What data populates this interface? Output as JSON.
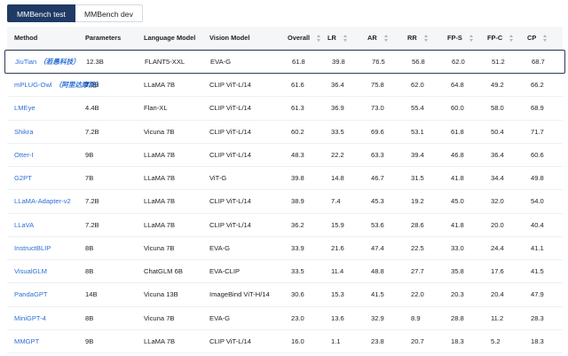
{
  "tabs": [
    {
      "label": "MMBench test",
      "active": true
    },
    {
      "label": "MMBench dev",
      "active": false
    }
  ],
  "columns": [
    "Method",
    "Parameters",
    "Language Model",
    "Vision Model",
    "Overall",
    "LR",
    "AR",
    "RR",
    "FP-S",
    "FP-C",
    "CP"
  ],
  "rows": [
    {
      "method": "JiuTian",
      "tag": "（若愚科技）",
      "params": "12.3B",
      "lm": "FLANT5-XXL",
      "vm": "EVA-G",
      "overall": "61.8",
      "lr": "39.8",
      "ar": "76.5",
      "rr": "56.8",
      "fps": "62.0",
      "fpc": "51.2",
      "cp": "68.7"
    },
    {
      "method": "mPLUG-Owl",
      "tag": "（阿里达摩院）",
      "params": "7.2B",
      "lm": "LLaMA 7B",
      "vm": "CLIP ViT-L/14",
      "overall": "61.6",
      "lr": "36.4",
      "ar": "75.8",
      "rr": "62.0",
      "fps": "64.8",
      "fpc": "49.2",
      "cp": "66.2"
    },
    {
      "method": "LMEye",
      "tag": "",
      "params": "4.4B",
      "lm": "Flan-XL",
      "vm": "CLIP ViT-L/14",
      "overall": "61.3",
      "lr": "36.9",
      "ar": "73.0",
      "rr": "55.4",
      "fps": "60.0",
      "fpc": "58.0",
      "cp": "68.9"
    },
    {
      "method": "Shikra",
      "tag": "",
      "params": "7.2B",
      "lm": "Vicuna 7B",
      "vm": "CLIP ViT-L/14",
      "overall": "60.2",
      "lr": "33.5",
      "ar": "69.6",
      "rr": "53.1",
      "fps": "61.8",
      "fpc": "50.4",
      "cp": "71.7"
    },
    {
      "method": "Otter-I",
      "tag": "",
      "params": "9B",
      "lm": "LLaMA 7B",
      "vm": "CLIP ViT-L/14",
      "overall": "48.3",
      "lr": "22.2",
      "ar": "63.3",
      "rr": "39.4",
      "fps": "46.8",
      "fpc": "36.4",
      "cp": "60.6"
    },
    {
      "method": "G2PT",
      "tag": "",
      "params": "7B",
      "lm": "LLaMA 7B",
      "vm": "ViT-G",
      "overall": "39.8",
      "lr": "14.8",
      "ar": "46.7",
      "rr": "31.5",
      "fps": "41.8",
      "fpc": "34.4",
      "cp": "49.8"
    },
    {
      "method": "LLaMA-Adapter-v2",
      "tag": "",
      "params": "7.2B",
      "lm": "LLaMA 7B",
      "vm": "CLIP ViT-L/14",
      "overall": "38.9",
      "lr": "7.4",
      "ar": "45.3",
      "rr": "19.2",
      "fps": "45.0",
      "fpc": "32.0",
      "cp": "54.0"
    },
    {
      "method": "LLaVA",
      "tag": "",
      "params": "7.2B",
      "lm": "LLaMA 7B",
      "vm": "CLIP ViT-L/14",
      "overall": "36.2",
      "lr": "15.9",
      "ar": "53.6",
      "rr": "28.6",
      "fps": "41.8",
      "fpc": "20.0",
      "cp": "40.4"
    },
    {
      "method": "InstructBLIP",
      "tag": "",
      "params": "8B",
      "lm": "Vicuna 7B",
      "vm": "EVA-G",
      "overall": "33.9",
      "lr": "21.6",
      "ar": "47.4",
      "rr": "22.5",
      "fps": "33.0",
      "fpc": "24.4",
      "cp": "41.1"
    },
    {
      "method": "VisualGLM",
      "tag": "",
      "params": "8B",
      "lm": "ChatGLM 6B",
      "vm": "EVA-CLIP",
      "overall": "33.5",
      "lr": "11.4",
      "ar": "48.8",
      "rr": "27.7",
      "fps": "35.8",
      "fpc": "17.6",
      "cp": "41.5"
    },
    {
      "method": "PandaGPT",
      "tag": "",
      "params": "14B",
      "lm": "Vicuna 13B",
      "vm": "ImageBind ViT-H/14",
      "overall": "30.6",
      "lr": "15.3",
      "ar": "41.5",
      "rr": "22.0",
      "fps": "20.3",
      "fpc": "20.4",
      "cp": "47.9"
    },
    {
      "method": "MiniGPT-4",
      "tag": "",
      "params": "8B",
      "lm": "Vicuna 7B",
      "vm": "EVA-G",
      "overall": "23.0",
      "lr": "13.6",
      "ar": "32.9",
      "rr": "8.9",
      "fps": "28.8",
      "fpc": "11.2",
      "cp": "28.3"
    },
    {
      "method": "MMGPT",
      "tag": "",
      "params": "9B",
      "lm": "LLaMA 7B",
      "vm": "CLIP ViT-L/14",
      "overall": "16.0",
      "lr": "1.1",
      "ar": "23.8",
      "rr": "20.7",
      "fps": "18.3",
      "fpc": "5.2",
      "cp": "18.3"
    }
  ]
}
